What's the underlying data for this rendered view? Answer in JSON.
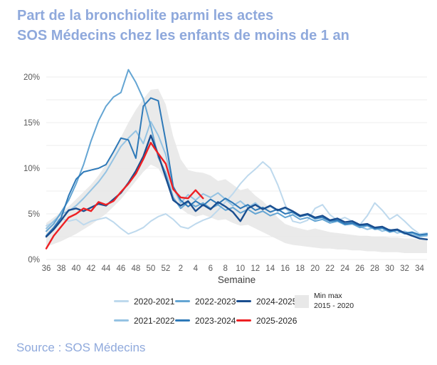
{
  "title": {
    "line1": "Part de la bronchiolite parmi les actes",
    "line2": "SOS Médecins chez les enfants de moins de 1 an"
  },
  "source": "Source : SOS Médecins",
  "colors": {
    "title_text": "#8FA9DC",
    "grid": "#ECECEC",
    "axis_text": "#595959",
    "band_fill": "#E8E8E8"
  },
  "chart_data": {
    "type": "line",
    "title": "Part de la bronchiolite parmi les actes SOS Médecins chez les enfants de moins de 1 an",
    "xlabel": "Semaine",
    "ylabel": "",
    "ylim": [
      0,
      21
    ],
    "grid_step": 2.5,
    "legend_position": "bottom",
    "ytick_values": [
      0,
      5,
      10,
      15,
      20
    ],
    "ytick_labels": [
      "0%",
      "5%",
      "10%",
      "15%",
      "20%"
    ],
    "x_categories": [
      "36",
      "37",
      "38",
      "39",
      "40",
      "41",
      "42",
      "43",
      "44",
      "45",
      "46",
      "47",
      "48",
      "49",
      "50",
      "51",
      "52",
      "1",
      "2",
      "3",
      "4",
      "5",
      "6",
      "7",
      "8",
      "9",
      "10",
      "11",
      "12",
      "13",
      "14",
      "15",
      "16",
      "17",
      "18",
      "19",
      "20",
      "21",
      "22",
      "23",
      "24",
      "25",
      "26",
      "27",
      "28",
      "29",
      "30",
      "31",
      "32",
      "33",
      "34",
      "35"
    ],
    "x_label_every": 2,
    "series": [
      {
        "name": "2020-2021",
        "color": "#BED9ED",
        "values": [
          3.7,
          4.1,
          4.5,
          4.2,
          4.4,
          3.8,
          4.2,
          4.4,
          4.6,
          4.1,
          3.4,
          2.8,
          3.1,
          3.5,
          4.2,
          4.7,
          5.0,
          4.4,
          3.6,
          3.4,
          3.9,
          4.3,
          4.6,
          5.4,
          6.3,
          7.2,
          8.3,
          9.2,
          9.9,
          10.7,
          10.0,
          8.2,
          6.0,
          4.2,
          4.0,
          4.3,
          5.6,
          6.0,
          4.9,
          4.3,
          4.6,
          4.2,
          3.8,
          4.8,
          6.2,
          5.4,
          4.4,
          4.9,
          4.2,
          3.4,
          2.8,
          2.9
        ]
      },
      {
        "name": "2021-2022",
        "color": "#95C3E3",
        "values": [
          3.4,
          4.2,
          5.0,
          5.3,
          5.9,
          6.7,
          7.6,
          8.5,
          9.6,
          11.0,
          12.4,
          13.3,
          14.1,
          12.7,
          15.1,
          13.6,
          11.5,
          7.9,
          6.2,
          7.1,
          6.5,
          7.2,
          6.8,
          7.3,
          6.6,
          5.9,
          6.4,
          5.7,
          6.2,
          5.5,
          5.8,
          5.3,
          5.6,
          5.1,
          4.7,
          5.0,
          4.4,
          4.7,
          4.2,
          4.4,
          3.9,
          4.1,
          3.6,
          3.3,
          3.5,
          3.1,
          3.3,
          2.9,
          3.1,
          2.7,
          2.5,
          2.6
        ]
      },
      {
        "name": "2022-2023",
        "color": "#64A5D3",
        "values": [
          3.1,
          3.9,
          5.2,
          6.5,
          8.3,
          10.4,
          13.0,
          15.2,
          16.8,
          17.8,
          18.3,
          20.8,
          19.4,
          17.6,
          14.6,
          11.2,
          9.5,
          6.8,
          5.6,
          6.3,
          5.8,
          6.2,
          5.6,
          6.0,
          5.4,
          5.7,
          5.1,
          5.5,
          5.0,
          5.3,
          4.8,
          5.1,
          4.6,
          4.9,
          4.4,
          4.6,
          4.2,
          4.4,
          4.0,
          4.2,
          3.8,
          3.9,
          3.5,
          3.7,
          3.3,
          3.4,
          3.0,
          3.2,
          2.8,
          2.9,
          2.6,
          2.7
        ]
      },
      {
        "name": "2023-2024",
        "color": "#2E79B8",
        "values": [
          2.6,
          3.5,
          4.6,
          7.0,
          8.8,
          9.6,
          9.8,
          10.0,
          10.4,
          11.8,
          13.3,
          13.1,
          11.1,
          16.8,
          17.7,
          17.4,
          13.0,
          8.0,
          6.5,
          5.8,
          6.4,
          5.9,
          6.6,
          6.1,
          6.7,
          6.2,
          5.6,
          6.0,
          5.4,
          5.7,
          5.2,
          5.5,
          5.0,
          5.2,
          4.7,
          4.9,
          4.5,
          4.6,
          4.2,
          4.3,
          3.9,
          4.0,
          3.7,
          3.8,
          3.4,
          3.5,
          3.1,
          3.2,
          2.9,
          3.0,
          2.7,
          2.8
        ]
      },
      {
        "name": "2024-2025",
        "color": "#1A4E8F",
        "values": [
          2.5,
          3.3,
          4.3,
          5.4,
          5.6,
          5.3,
          5.7,
          6.1,
          5.9,
          6.6,
          7.3,
          8.4,
          9.7,
          11.3,
          13.6,
          11.5,
          9.0,
          6.5,
          5.9,
          6.4,
          5.3,
          6.0,
          5.5,
          6.3,
          5.8,
          5.2,
          4.2,
          5.6,
          6.0,
          5.5,
          5.9,
          5.4,
          5.7,
          5.3,
          4.8,
          5.0,
          4.6,
          4.8,
          4.3,
          4.5,
          4.1,
          4.2,
          3.8,
          3.9,
          3.5,
          3.6,
          3.2,
          3.3,
          2.9,
          2.6,
          2.3,
          2.2
        ]
      },
      {
        "name": "2025-2026",
        "color": "#EE2024",
        "values": [
          1.2,
          2.6,
          3.6,
          4.6,
          5.0,
          5.6,
          5.3,
          6.3,
          6.0,
          6.4,
          7.4,
          8.3,
          9.4,
          11.0,
          12.8,
          11.6,
          10.5,
          7.7,
          6.8,
          6.7,
          7.6,
          6.7,
          null,
          null,
          null,
          null,
          null,
          null,
          null,
          null,
          null,
          null,
          null,
          null,
          null,
          null,
          null,
          null,
          null,
          null,
          null,
          null,
          null,
          null,
          null,
          null,
          null,
          null,
          null,
          null,
          null,
          null
        ]
      }
    ],
    "band": {
      "name": "Min max 2015 - 2020",
      "label_line1": "Min max",
      "label_line2": "2015 - 2020",
      "color": "#E8E8E8",
      "upper": [
        4.0,
        4.6,
        5.2,
        5.8,
        6.6,
        7.4,
        8.2,
        9.2,
        10.4,
        11.8,
        13.4,
        15.0,
        16.4,
        17.6,
        18.6,
        18.7,
        17.0,
        13.5,
        11.0,
        9.8,
        9.6,
        9.5,
        9.2,
        8.6,
        8.8,
        8.2,
        7.6,
        7.8,
        7.0,
        6.4,
        5.6,
        4.6,
        3.9,
        3.6,
        3.4,
        3.2,
        3.4,
        3.2,
        3.0,
        2.9,
        2.8,
        2.7,
        2.6,
        2.6,
        2.5,
        2.5,
        2.4,
        2.4,
        2.3,
        2.3,
        2.2,
        2.2
      ],
      "lower": [
        1.4,
        1.7,
        2.0,
        2.4,
        2.8,
        3.3,
        3.8,
        4.4,
        5.0,
        5.8,
        6.6,
        7.6,
        8.6,
        9.6,
        10.4,
        10.0,
        8.6,
        6.8,
        5.6,
        5.0,
        4.7,
        4.9,
        4.6,
        4.3,
        4.4,
        4.0,
        3.7,
        3.8,
        3.4,
        3.0,
        2.6,
        2.2,
        1.8,
        1.6,
        1.5,
        1.4,
        1.3,
        1.2,
        1.2,
        1.1,
        1.1,
        1.0,
        1.0,
        0.9,
        0.9,
        0.8,
        0.8,
        0.8,
        0.7,
        0.7,
        0.7,
        0.7
      ]
    }
  }
}
